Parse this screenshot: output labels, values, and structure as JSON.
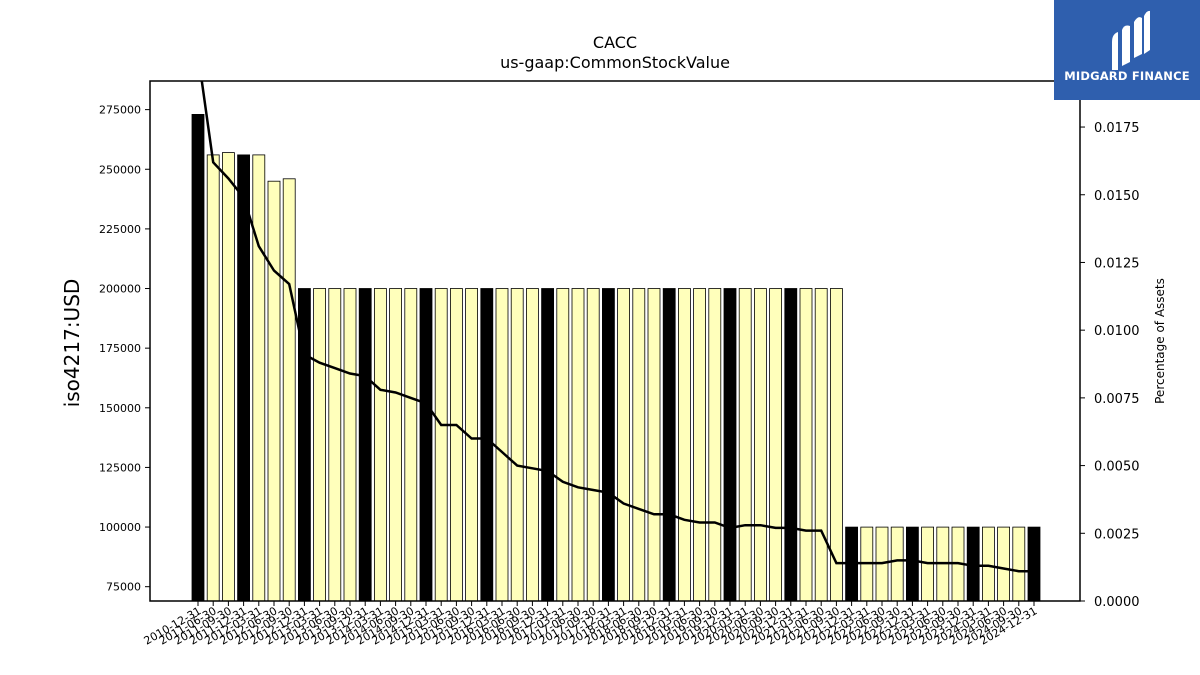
{
  "logo": {
    "text": "MIDGARD FINANCE",
    "icon": "midgard-m-logo-icon",
    "background": "#2f5fae"
  },
  "chart_data": {
    "type": "bar",
    "title": "CACC",
    "subtitle": "us-gaap:CommonStockValue",
    "ylabel": "iso4217:USD",
    "y2label": "Percentage of Assets",
    "ylim": [
      69000,
      287000
    ],
    "y2lim": [
      0,
      0.0192
    ],
    "yticks": [
      75000,
      100000,
      125000,
      150000,
      175000,
      200000,
      225000,
      250000,
      275000
    ],
    "y2ticks": [
      "0.0000",
      "0.0025",
      "0.0050",
      "0.0075",
      "0.0100",
      "0.0125",
      "0.0150",
      "0.0175"
    ],
    "colors": {
      "annual_bar": "#000000",
      "quarter_bar": "#ffffbb",
      "line": "#000000"
    },
    "categories": [
      "2010-12-31",
      "2011-06-30",
      "2011-09-30",
      "2011-12-31",
      "2012-03-31",
      "2012-06-30",
      "2012-09-30",
      "2012-12-31",
      "2013-03-31",
      "2013-06-30",
      "2013-09-30",
      "2013-12-31",
      "2014-03-31",
      "2014-06-30",
      "2014-09-30",
      "2014-12-31",
      "2015-03-31",
      "2015-06-30",
      "2015-09-30",
      "2015-12-31",
      "2016-03-31",
      "2016-06-30",
      "2016-09-30",
      "2016-12-31",
      "2017-03-31",
      "2017-06-30",
      "2017-09-30",
      "2017-12-31",
      "2018-03-31",
      "2018-06-30",
      "2018-09-30",
      "2018-12-31",
      "2019-03-31",
      "2019-06-30",
      "2019-09-30",
      "2019-12-31",
      "2020-03-31",
      "2020-06-30",
      "2020-09-30",
      "2020-12-31",
      "2021-03-31",
      "2021-06-30",
      "2021-09-30",
      "2021-12-31",
      "2022-03-31",
      "2022-06-30",
      "2022-09-30",
      "2022-12-31",
      "2023-03-31",
      "2023-06-30",
      "2023-09-30",
      "2023-12-31",
      "2024-03-31",
      "2024-06-30",
      "2024-09-30",
      "2024-12-31"
    ],
    "values": [
      273000,
      256000,
      257000,
      256000,
      256000,
      245000,
      246000,
      200000,
      200000,
      200000,
      200000,
      200000,
      200000,
      200000,
      200000,
      200000,
      200000,
      200000,
      200000,
      200000,
      200000,
      200000,
      200000,
      200000,
      200000,
      200000,
      200000,
      200000,
      200000,
      200000,
      200000,
      200000,
      200000,
      200000,
      200000,
      200000,
      200000,
      200000,
      200000,
      200000,
      200000,
      200000,
      200000,
      100000,
      100000,
      100000,
      100000,
      100000,
      100000,
      100000,
      100000,
      100000,
      100000,
      100000,
      100000,
      100000
    ],
    "annual": [
      true,
      false,
      false,
      true,
      false,
      false,
      false,
      true,
      false,
      false,
      false,
      true,
      false,
      false,
      false,
      true,
      false,
      false,
      false,
      true,
      false,
      false,
      false,
      true,
      false,
      false,
      false,
      true,
      false,
      false,
      false,
      true,
      false,
      false,
      false,
      true,
      false,
      false,
      false,
      true,
      false,
      false,
      false,
      true,
      false,
      false,
      false,
      true,
      false,
      false,
      false,
      true,
      false,
      false,
      false,
      true
    ],
    "pct_assets": [
      0.0202,
      0.0162,
      0.0156,
      0.0149,
      0.0131,
      0.0122,
      0.0117,
      0.0091,
      0.0088,
      0.0086,
      0.0084,
      0.0083,
      0.0078,
      0.0077,
      0.0075,
      0.0073,
      0.0065,
      0.0065,
      0.006,
      0.006,
      0.0055,
      0.005,
      0.0049,
      0.0048,
      0.0044,
      0.0042,
      0.0041,
      0.004,
      0.0036,
      0.0034,
      0.0032,
      0.0032,
      0.003,
      0.0029,
      0.0029,
      0.0027,
      0.0028,
      0.0028,
      0.0027,
      0.0027,
      0.0026,
      0.0026,
      0.0014,
      0.0014,
      0.0014,
      0.0014,
      0.0015,
      0.0015,
      0.0014,
      0.0014,
      0.0014,
      0.0013,
      0.0013,
      0.0012,
      0.0011,
      0.0011
    ]
  }
}
